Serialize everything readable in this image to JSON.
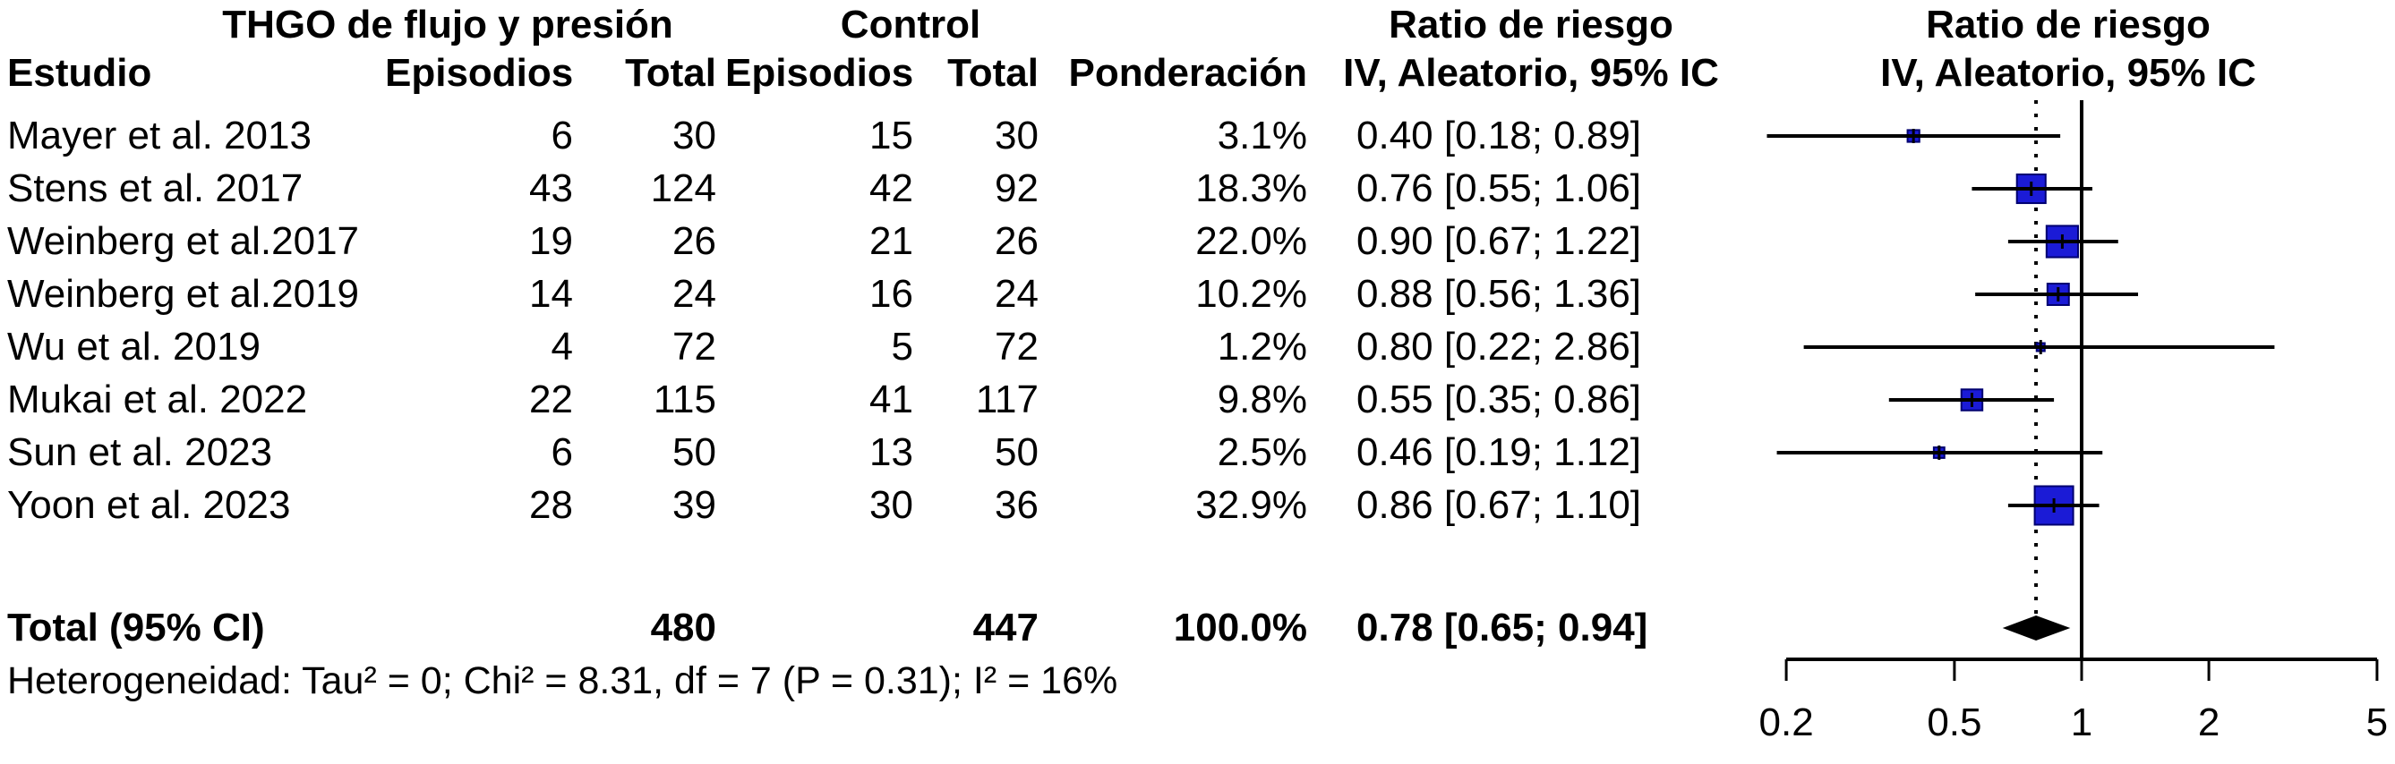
{
  "chart_data": {
    "type": "forest",
    "xscale": "log",
    "xlim": [
      0.2,
      5
    ],
    "axis_ticks": [
      0.2,
      0.5,
      1,
      2,
      5
    ],
    "axis_tick_labels": [
      "0.2",
      "0.5",
      "1",
      "2",
      "5"
    ],
    "grid": false,
    "header": {
      "group_experimental": "THGO de flujo y presión",
      "group_control": "Control",
      "study": "Estudio",
      "events1": "Episodios",
      "total1": "Total",
      "events2": "Episodios",
      "total2": "Total",
      "weight": "Ponderación",
      "rr_title": "Ratio de riesgo",
      "rr_subtitle": "IV, Aleatorio, 95% IC",
      "plot_title": "Ratio de riesgo",
      "plot_subtitle": "IV, Aleatorio, 95% IC"
    },
    "studies": [
      {
        "name": "Mayer et al. 2013",
        "exp_events": "6",
        "exp_total": "30",
        "ctl_events": "15",
        "ctl_total": "30",
        "weight": "3.1%",
        "weight_value": 3.1,
        "rr_label": "0.40 [0.18; 0.89]",
        "rr": 0.4,
        "ci_low": 0.18,
        "ci_high": 0.89
      },
      {
        "name": "Stens et al. 2017",
        "exp_events": "43",
        "exp_total": "124",
        "ctl_events": "42",
        "ctl_total": "92",
        "weight": "18.3%",
        "weight_value": 18.3,
        "rr_label": "0.76 [0.55; 1.06]",
        "rr": 0.76,
        "ci_low": 0.55,
        "ci_high": 1.06
      },
      {
        "name": "Weinberg et al.2017",
        "exp_events": "19",
        "exp_total": "26",
        "ctl_events": "21",
        "ctl_total": "26",
        "weight": "22.0%",
        "weight_value": 22.0,
        "rr_label": "0.90 [0.67; 1.22]",
        "rr": 0.9,
        "ci_low": 0.67,
        "ci_high": 1.22
      },
      {
        "name": "Weinberg et al.2019",
        "exp_events": "14",
        "exp_total": "24",
        "ctl_events": "16",
        "ctl_total": "24",
        "weight": "10.2%",
        "weight_value": 10.2,
        "rr_label": "0.88 [0.56; 1.36]",
        "rr": 0.88,
        "ci_low": 0.56,
        "ci_high": 1.36
      },
      {
        "name": "Wu et al. 2019",
        "exp_events": "4",
        "exp_total": "72",
        "ctl_events": "5",
        "ctl_total": "72",
        "weight": "1.2%",
        "weight_value": 1.2,
        "rr_label": "0.80 [0.22; 2.86]",
        "rr": 0.8,
        "ci_low": 0.22,
        "ci_high": 2.86
      },
      {
        "name": "Mukai et al. 2022",
        "exp_events": "22",
        "exp_total": "115",
        "ctl_events": "41",
        "ctl_total": "117",
        "weight": "9.8%",
        "weight_value": 9.8,
        "rr_label": "0.55 [0.35; 0.86]",
        "rr": 0.55,
        "ci_low": 0.35,
        "ci_high": 0.86
      },
      {
        "name": "Sun et al. 2023",
        "exp_events": "6",
        "exp_total": "50",
        "ctl_events": "13",
        "ctl_total": "50",
        "weight": "2.5%",
        "weight_value": 2.5,
        "rr_label": "0.46 [0.19; 1.12]",
        "rr": 0.46,
        "ci_low": 0.19,
        "ci_high": 1.12
      },
      {
        "name": "Yoon et al. 2023",
        "exp_events": "28",
        "exp_total": "39",
        "ctl_events": "30",
        "ctl_total": "36",
        "weight": "32.9%",
        "weight_value": 32.9,
        "rr_label": "0.86 [0.67; 1.10]",
        "rr": 0.86,
        "ci_low": 0.67,
        "ci_high": 1.1
      }
    ],
    "total": {
      "label": "Total (95% CI)",
      "exp_total": "480",
      "ctl_total": "447",
      "weight": "100.0%",
      "rr_label": "0.78 [0.65; 0.94]",
      "rr": 0.78,
      "ci_low": 0.65,
      "ci_high": 0.94
    },
    "heterogeneity": "Heterogeneidad: Tau² = 0; Chi² = 8.31, df = 7 (P = 0.31); I² = 16%",
    "colors": {
      "square": "#1b1bd6",
      "square_border": "#000070",
      "diamond": "#000000",
      "line": "#000000"
    }
  }
}
